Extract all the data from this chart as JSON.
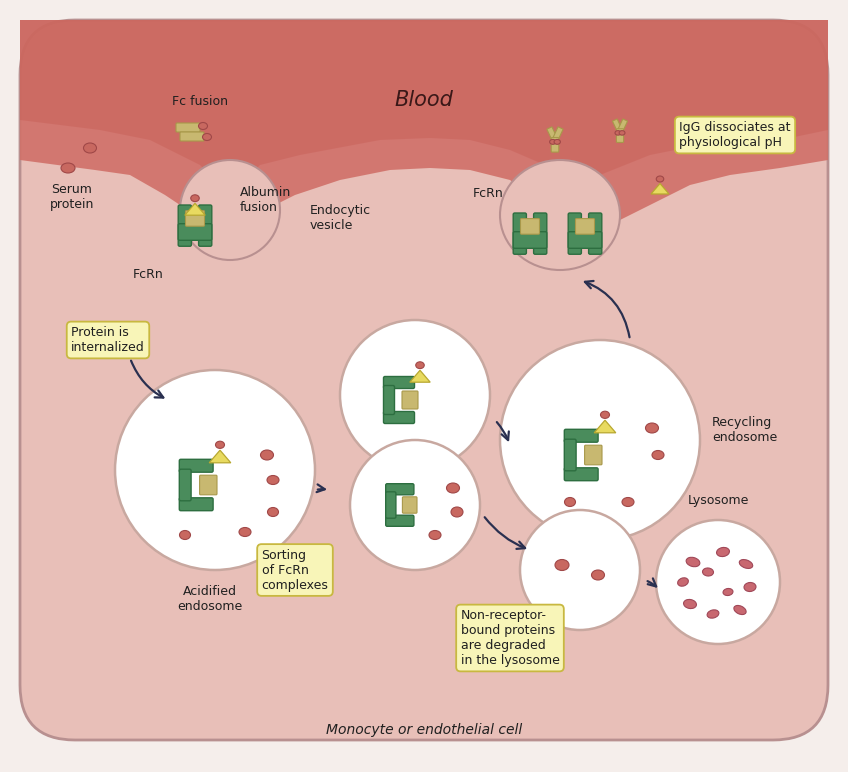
{
  "cell_color": "#e8c0b8",
  "cell_edge": "#c49898",
  "blood_color": "#cc6655",
  "blood_inner": "#c05848",
  "white": "#ffffff",
  "green": "#4a8c5c",
  "dark_green": "#2d6e40",
  "tan": "#c8b870",
  "dark_tan": "#a8984a",
  "protein_color": "#c86860",
  "protein_outline": "#a04848",
  "yellow_box": "#f8f5b8",
  "yellow_box_border": "#c8b840",
  "arrow_color": "#2a3050",
  "label_color": "#202020",
  "title": "Blood",
  "bottom_label": "Monocyte or endothelial cell",
  "labels": {
    "fc_fusion": "Fc fusion",
    "serum_protein": "Serum\nprotein",
    "albumin_fusion": "Albumin\nfusion",
    "fcrn_left": "FcRn",
    "endocytic": "Endocytic\nvesicle",
    "protein_internalized": "Protein is\ninternalized",
    "acidified": "Acidified\nendosome",
    "sorting": "Sorting\nof FcRn\ncomplexes",
    "recycling": "Recycling\nendosome",
    "fcrn_right": "FcRn",
    "igg_dissociates": "IgG dissociates at\nphysiological pH",
    "lysosome": "Lysosome",
    "non_receptor": "Non-receptor-\nbound proteins\nare degraded\nin the lysosome"
  }
}
